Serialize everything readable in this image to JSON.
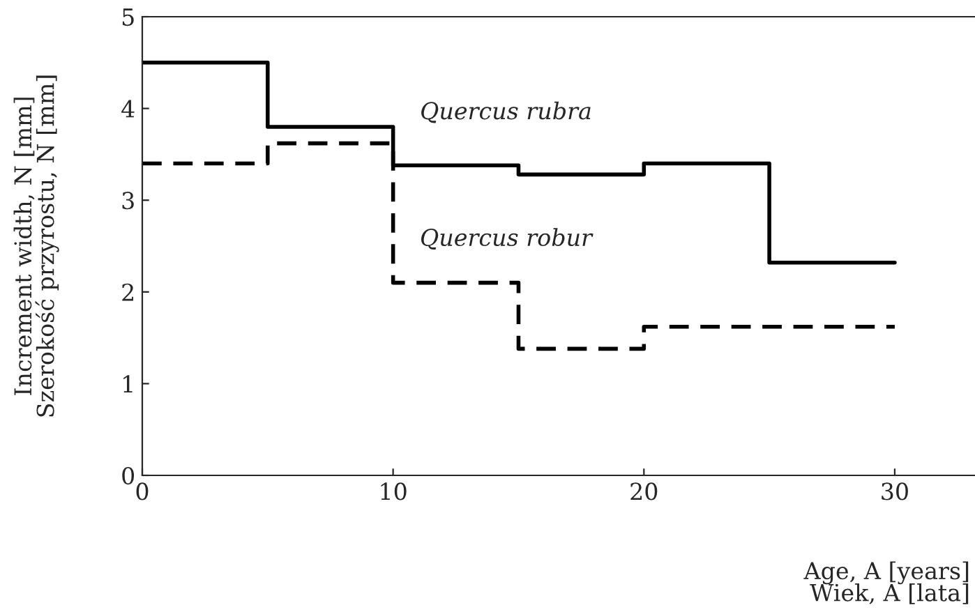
{
  "chart_data": {
    "type": "step",
    "xlabel": "Age, A [years]\nWiek, A [lata]",
    "ylabel": "Increment width, N [mm]\nSzerokość przyrostu, N [mm]",
    "x": [
      0,
      5,
      10,
      15,
      20,
      25,
      30
    ],
    "series": [
      {
        "name": "Quercus rubra",
        "color": "#000000",
        "line_style": "solid",
        "values": [
          4.5,
          3.8,
          3.38,
          3.28,
          3.4,
          2.32,
          2.32
        ]
      },
      {
        "name": "Quercus robur",
        "color": "#000000",
        "line_style": "dashed",
        "values": [
          3.4,
          3.62,
          2.1,
          1.38,
          1.62,
          1.62,
          1.62
        ]
      }
    ],
    "xlim": [
      0,
      33.2
    ],
    "ylim": [
      0,
      5
    ],
    "xticks": [
      0,
      10,
      20,
      30
    ],
    "yticks": [
      0,
      1,
      2,
      3,
      4,
      5
    ],
    "grid": false,
    "legend": false
  }
}
